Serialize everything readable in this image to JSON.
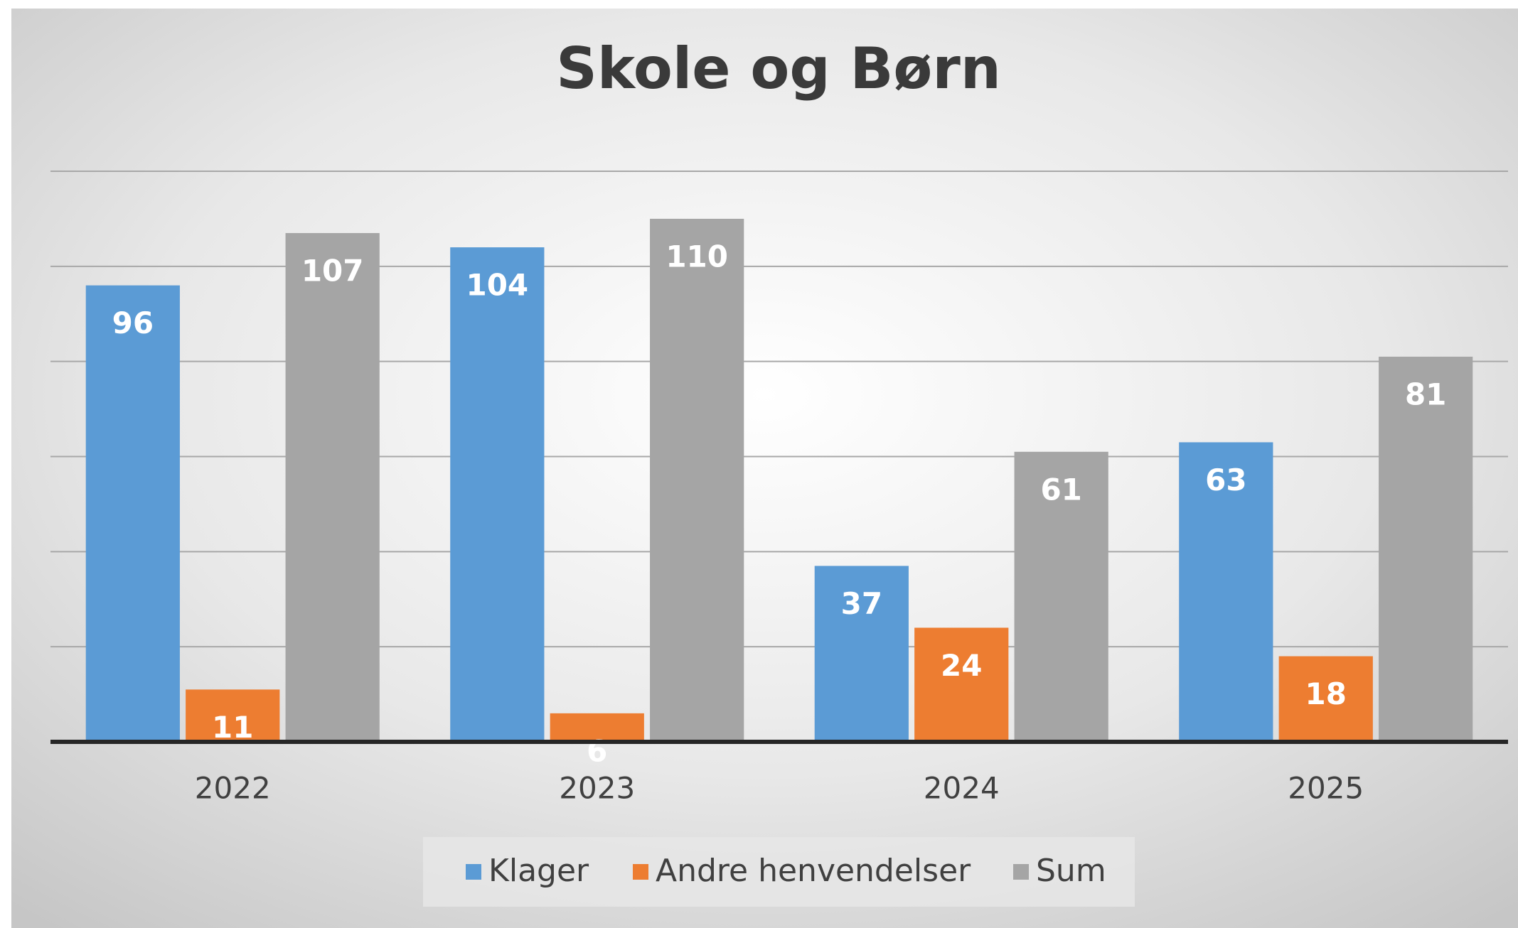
{
  "chart_data": {
    "type": "bar",
    "title": "Skole og Børn",
    "categories": [
      "2022",
      "2023",
      "2024",
      "2025"
    ],
    "series": [
      {
        "name": "Klager",
        "color": "#5b9bd5",
        "values": [
          96,
          104,
          37,
          63
        ]
      },
      {
        "name": "Andre henvendelser",
        "color": "#ed7d31",
        "values": [
          11,
          6,
          24,
          18
        ]
      },
      {
        "name": "Sum",
        "color": "#a5a5a5",
        "values": [
          107,
          110,
          61,
          81
        ]
      }
    ],
    "ylim": [
      0,
      120
    ],
    "yticks": [
      0,
      20,
      40,
      60,
      80,
      100,
      120
    ],
    "grid": true,
    "legend": "bottom"
  }
}
